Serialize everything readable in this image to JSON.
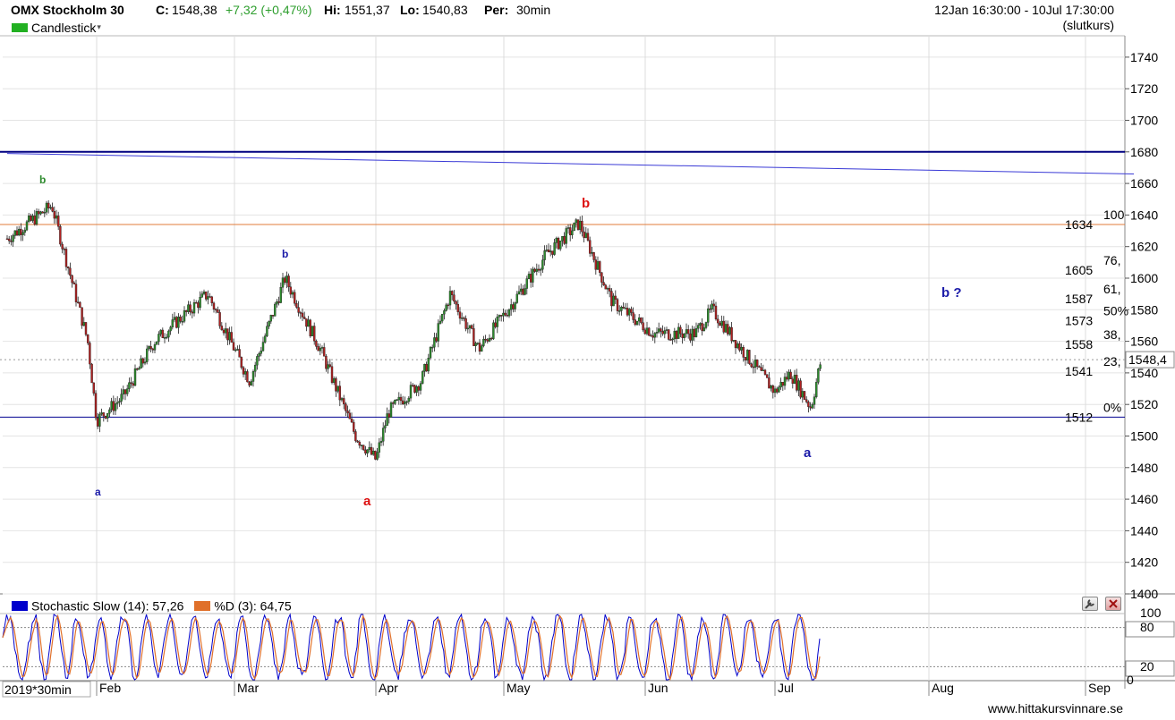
{
  "header": {
    "instrument": "OMX Stockholm 30",
    "close_label": "C:",
    "close_value": "1548,38",
    "change": "+7,32 (+0,47%)",
    "high_label": "Hi:",
    "high_value": "1551,37",
    "low_label": "Lo:",
    "low_value": "1540,83",
    "period_label": "Per:",
    "period_value": "30min",
    "date_range": "12Jan 16:30:00 - 10Jul 17:30:00",
    "price_basis": "(slutkurs)",
    "chart_type_selector": "Candlestick",
    "chart_type_arrow": "▾",
    "colors": {
      "change": "#2e9e2e",
      "candle_bull": "#2c8c2c",
      "candle_bear": "#b02020",
      "stoch_k": "#0000cc",
      "stoch_d": "#e0702a"
    }
  },
  "price_axis": {
    "ticks": [
      "1740",
      "1720",
      "1700",
      "1680",
      "1660",
      "1640",
      "1620",
      "1600",
      "1580",
      "1560",
      "1540",
      "1520",
      "1500",
      "1480",
      "1460",
      "1440",
      "1420",
      "1400"
    ],
    "current_price_label": "1548,4"
  },
  "time_axis": {
    "year_label": "2019*30min",
    "months": [
      "Feb",
      "Mar",
      "Apr",
      "May",
      "Jun",
      "Jul",
      "Aug",
      "Sep"
    ]
  },
  "fibonacci": {
    "levels": [
      {
        "pct": "100",
        "price": "1634"
      },
      {
        "pct": "76,",
        "price": "1605"
      },
      {
        "pct": "61,",
        "price": "1587"
      },
      {
        "pct": "50%",
        "price": "1573"
      },
      {
        "pct": "38,",
        "price": "1558"
      },
      {
        "pct": "23,",
        "price": "1541"
      },
      {
        "pct": "0%",
        "price": "1512"
      }
    ]
  },
  "annotations": [
    {
      "text": "b",
      "color": "#2e8b2e"
    },
    {
      "text": "a",
      "color": "#1a1aa8"
    },
    {
      "text": "b",
      "color": "#1a1aa8"
    },
    {
      "text": "a",
      "color": "#dd1111"
    },
    {
      "text": "b",
      "color": "#dd1111"
    },
    {
      "text": "a",
      "color": "#1a1aa8"
    },
    {
      "text": "b ?",
      "color": "#1a1aa8"
    }
  ],
  "stochastic": {
    "k_label": "Stochastic Slow (14): 57,26",
    "d_label": "%D (3): 64,75",
    "ticks": [
      "100",
      "80",
      "20",
      "0"
    ],
    "settings_icon": "wrench-icon",
    "close_icon": "close-icon"
  },
  "footer": {
    "source": "www.hittakursvinnare.se"
  },
  "chart_data": [
    {
      "type": "candlestick",
      "title": "OMX Stockholm 30",
      "ylim": [
        1400,
        1750
      ],
      "yticks": [
        1400,
        1420,
        1440,
        1460,
        1480,
        1500,
        1520,
        1540,
        1560,
        1580,
        1600,
        1620,
        1640,
        1660,
        1680,
        1700,
        1720,
        1740
      ],
      "x_categories": [
        "Feb",
        "Mar",
        "Apr",
        "May",
        "Jun",
        "Jul",
        "Aug",
        "Sep"
      ],
      "approx_close_path": [
        {
          "x": "Jan 12",
          "y": 1625
        },
        {
          "x": "Jan 22",
          "y": 1646
        },
        {
          "x": "Jan 30",
          "y": 1560
        },
        {
          "x": "Feb 1",
          "y": 1510
        },
        {
          "x": "Feb 7",
          "y": 1525
        },
        {
          "x": "Feb 14",
          "y": 1560
        },
        {
          "x": "Feb 26",
          "y": 1590
        },
        {
          "x": "Mar 4",
          "y": 1535
        },
        {
          "x": "Mar 11",
          "y": 1600
        },
        {
          "x": "Mar 18",
          "y": 1555
        },
        {
          "x": "Mar 25",
          "y": 1500
        },
        {
          "x": "Mar 29",
          "y": 1485
        },
        {
          "x": "Apr 4",
          "y": 1515
        },
        {
          "x": "Apr 12",
          "y": 1535
        },
        {
          "x": "Apr 19",
          "y": 1590
        },
        {
          "x": "Apr 26",
          "y": 1555
        },
        {
          "x": "May 3",
          "y": 1585
        },
        {
          "x": "May 10",
          "y": 1615
        },
        {
          "x": "May 17",
          "y": 1635
        },
        {
          "x": "May 24",
          "y": 1585
        },
        {
          "x": "Jun 3",
          "y": 1565
        },
        {
          "x": "Jun 13",
          "y": 1565
        },
        {
          "x": "Jun 17",
          "y": 1580
        },
        {
          "x": "Jun 24",
          "y": 1555
        },
        {
          "x": "Jul 1",
          "y": 1528
        },
        {
          "x": "Jul 4",
          "y": 1540
        },
        {
          "x": "Jul 8",
          "y": 1518
        },
        {
          "x": "Jul 10",
          "y": 1548.38
        }
      ],
      "horizontal_lines": [
        {
          "name": "resistance",
          "y": 1680
        },
        {
          "name": "fib-100",
          "y": 1634
        },
        {
          "name": "fib-0",
          "y": 1512
        }
      ],
      "trendline": {
        "from": {
          "x": "Jan 12",
          "y": 1679
        },
        "to": {
          "x": "Sep 5",
          "y": 1666
        }
      },
      "grid": true
    },
    {
      "type": "line",
      "series": [
        {
          "name": "Stochastic Slow (14)",
          "last": 57.26
        },
        {
          "name": "%D (3)",
          "last": 64.75
        }
      ],
      "ylim": [
        0,
        100
      ],
      "reference_lines": [
        80,
        20
      ]
    }
  ]
}
